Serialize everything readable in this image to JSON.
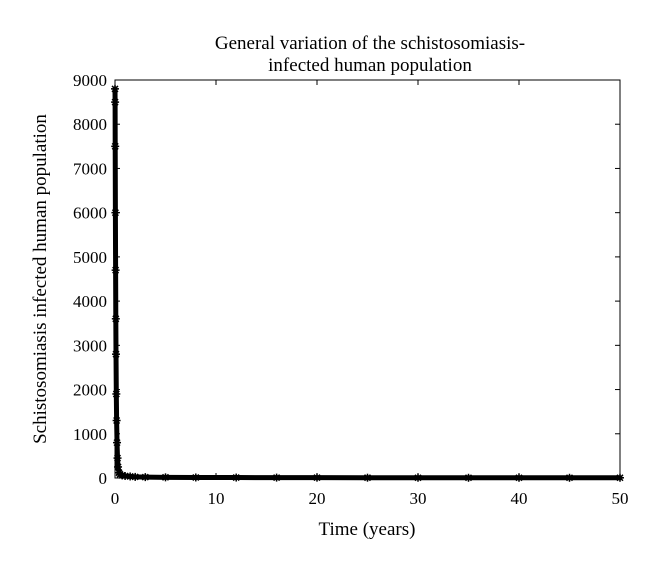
{
  "chart_data": {
    "type": "line",
    "title": [
      "General variation of the schistosomiasis-",
      "infected human population"
    ],
    "xlabel": "Time (years)",
    "ylabel": "Schistosomiasis infected human population",
    "xlim": [
      0,
      50
    ],
    "ylim": [
      0,
      9000
    ],
    "xticks": [
      0,
      10,
      20,
      30,
      40,
      50
    ],
    "yticks": [
      0,
      1000,
      2000,
      3000,
      4000,
      5000,
      6000,
      7000,
      8000,
      9000
    ],
    "grid": false,
    "series": [
      {
        "color": "#000000",
        "marker": "star",
        "x": [
          0,
          0.01,
          0.02,
          0.04,
          0.06,
          0.08,
          0.1,
          0.13,
          0.16,
          0.2,
          0.25,
          0.3,
          0.4,
          0.5,
          0.7,
          1,
          1.5,
          2,
          3,
          5,
          8,
          12,
          16,
          20,
          25,
          30,
          35,
          40,
          45,
          50
        ],
        "values": [
          8800,
          8500,
          7500,
          6000,
          4700,
          3600,
          2800,
          1900,
          1300,
          800,
          450,
          250,
          120,
          80,
          60,
          45,
          35,
          25,
          20,
          15,
          12,
          10,
          9,
          8,
          7,
          6,
          5,
          5,
          5,
          5
        ]
      }
    ]
  }
}
